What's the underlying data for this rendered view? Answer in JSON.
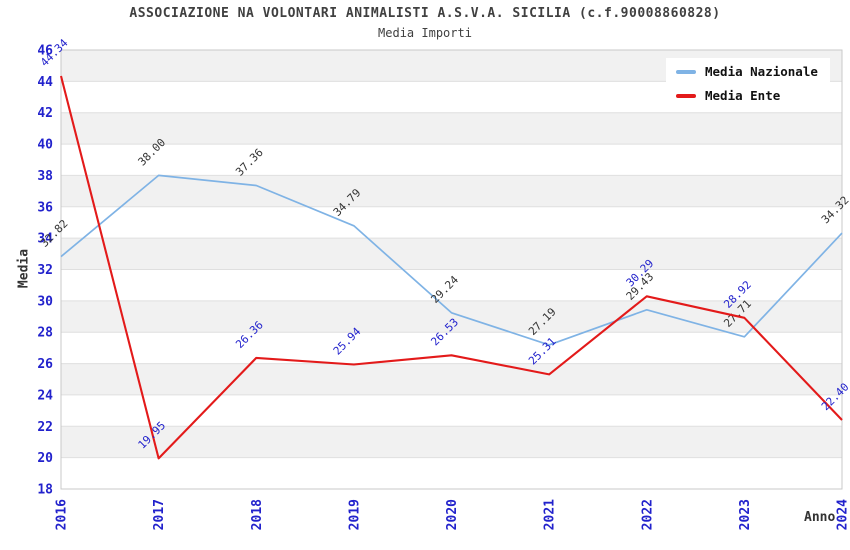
{
  "title": "ASSOCIAZIONE NA VOLONTARI ANIMALISTI A.S.V.A. SICILIA (c.f.90008860828)",
  "subtitle": "Media Importi",
  "chart_data": {
    "type": "line",
    "x": [
      "2016",
      "2017",
      "2018",
      "2019",
      "2020",
      "2021",
      "2022",
      "2023",
      "2024"
    ],
    "xlabel": "Anno",
    "ylabel": "Media",
    "ylim": [
      18,
      46
    ],
    "ytick_step": 2,
    "yticks": [
      18,
      20,
      22,
      24,
      26,
      28,
      30,
      32,
      34,
      36,
      38,
      40,
      42,
      44,
      46
    ],
    "grid": "horizontal gridlines with alternating shaded bands",
    "legend_position": "top-right",
    "series": [
      {
        "name": "Media Nazionale",
        "color": "#7FB3E5",
        "label_color": "#333333",
        "values": [
          32.82,
          38.0,
          37.36,
          34.79,
          29.24,
          27.19,
          29.43,
          27.71,
          34.32
        ]
      },
      {
        "name": "Media Ente",
        "color": "#E31A1A",
        "label_color": "#2222CC",
        "values": [
          44.34,
          19.95,
          26.36,
          25.94,
          26.53,
          25.31,
          30.29,
          28.92,
          22.4
        ]
      }
    ],
    "palette": {
      "tick_label_color": "#2222CC",
      "axis_title_color": "#333333",
      "band_fill": "#F1F1F1",
      "gridline_color": "#DFDFDF",
      "plot_border_color": "#C9C9C9",
      "background": "#FFFFFF"
    }
  }
}
